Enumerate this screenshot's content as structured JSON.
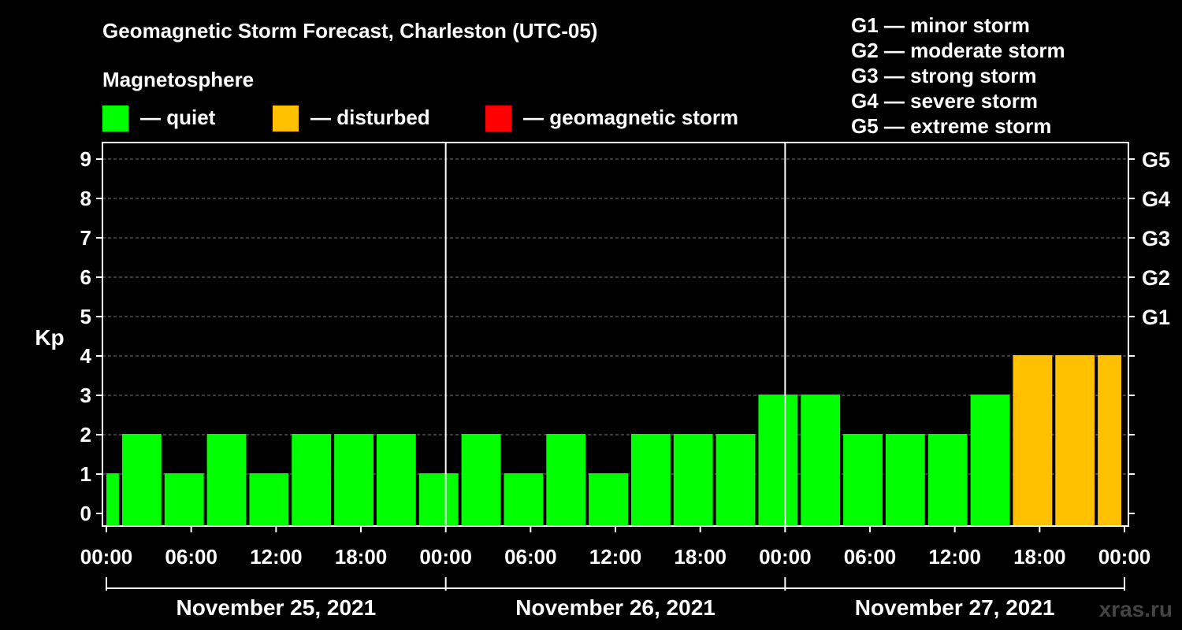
{
  "header": {
    "title": "Geomagnetic Storm Forecast, Charleston (UTC-05)",
    "subtitle": "Magnetosphere"
  },
  "legend": [
    {
      "label": "— quiet",
      "color": "#00ff00"
    },
    {
      "label": "— disturbed",
      "color": "#ffc000"
    },
    {
      "label": "— geomagnetic storm",
      "color": "#ff0000"
    }
  ],
  "storm_levels": [
    "G1 — minor storm",
    "G2 — moderate storm",
    "G3 — strong storm",
    "G4 — severe storm",
    "G5 — extreme storm"
  ],
  "watermark": "xras.ru",
  "chart_data": {
    "type": "bar",
    "title": "Geomagnetic Storm Forecast, Charleston (UTC-05)",
    "ylabel": "Kp",
    "ylim": [
      0,
      9
    ],
    "yticks": [
      "0",
      "1",
      "2",
      "3",
      "4",
      "5",
      "6",
      "7",
      "8",
      "9"
    ],
    "right_ticks": [
      {
        "kp": 5,
        "label": "G1"
      },
      {
        "kp": 6,
        "label": "G2"
      },
      {
        "kp": 7,
        "label": "G3"
      },
      {
        "kp": 8,
        "label": "G4"
      },
      {
        "kp": 9,
        "label": "G5"
      }
    ],
    "xticks": [
      "00:00",
      "06:00",
      "12:00",
      "18:00",
      "00:00",
      "06:00",
      "12:00",
      "18:00",
      "00:00",
      "06:00",
      "12:00",
      "18:00",
      "00:00"
    ],
    "days": [
      "November 25, 2021",
      "November 26, 2021",
      "November 27, 2021"
    ],
    "grid": "horizontal dashed",
    "bars": [
      {
        "start_hour": 0,
        "end_hour": 1,
        "kp": 1
      },
      {
        "start_hour": 1,
        "end_hour": 4,
        "kp": 2
      },
      {
        "start_hour": 4,
        "end_hour": 7,
        "kp": 1
      },
      {
        "start_hour": 7,
        "end_hour": 10,
        "kp": 2
      },
      {
        "start_hour": 10,
        "end_hour": 13,
        "kp": 1
      },
      {
        "start_hour": 13,
        "end_hour": 16,
        "kp": 2
      },
      {
        "start_hour": 16,
        "end_hour": 19,
        "kp": 2
      },
      {
        "start_hour": 19,
        "end_hour": 22,
        "kp": 2
      },
      {
        "start_hour": 22,
        "end_hour": 25,
        "kp": 1
      },
      {
        "start_hour": 25,
        "end_hour": 28,
        "kp": 2
      },
      {
        "start_hour": 28,
        "end_hour": 31,
        "kp": 1
      },
      {
        "start_hour": 31,
        "end_hour": 34,
        "kp": 2
      },
      {
        "start_hour": 34,
        "end_hour": 37,
        "kp": 1
      },
      {
        "start_hour": 37,
        "end_hour": 40,
        "kp": 2
      },
      {
        "start_hour": 40,
        "end_hour": 43,
        "kp": 2
      },
      {
        "start_hour": 43,
        "end_hour": 46,
        "kp": 2
      },
      {
        "start_hour": 46,
        "end_hour": 49,
        "kp": 3
      },
      {
        "start_hour": 49,
        "end_hour": 52,
        "kp": 3
      },
      {
        "start_hour": 52,
        "end_hour": 55,
        "kp": 2
      },
      {
        "start_hour": 55,
        "end_hour": 58,
        "kp": 2
      },
      {
        "start_hour": 58,
        "end_hour": 61,
        "kp": 2
      },
      {
        "start_hour": 61,
        "end_hour": 64,
        "kp": 3
      },
      {
        "start_hour": 64,
        "end_hour": 67,
        "kp": 4
      },
      {
        "start_hour": 67,
        "end_hour": 70,
        "kp": 4
      },
      {
        "start_hour": 70,
        "end_hour": 72,
        "kp": 4
      }
    ],
    "colors": {
      "quiet": "#00ff00",
      "disturbed": "#ffc000",
      "storm": "#ff0000"
    }
  }
}
